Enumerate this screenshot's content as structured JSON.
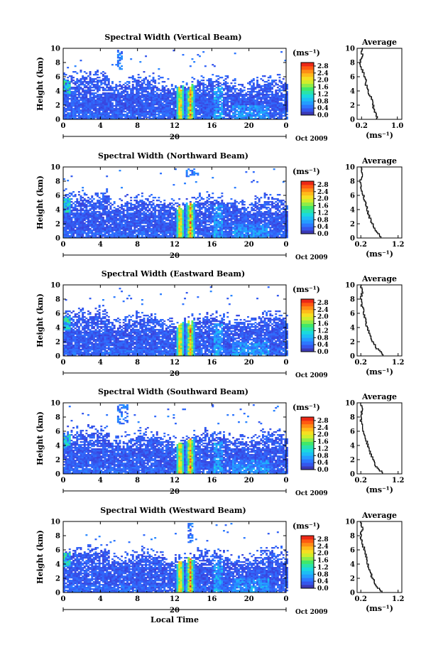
{
  "chart_data": [
    {
      "type": "heatmap",
      "title": "Spectral Width (Vertical Beam)",
      "ylabel": "Height (km)",
      "x_ticks": [
        "0",
        "4",
        "8",
        "12",
        "16",
        "20",
        "0"
      ],
      "y_ticks": [
        "0",
        "2",
        "4",
        "6",
        "8",
        "10"
      ],
      "xlim": [
        0,
        24
      ],
      "ylim": [
        0,
        10
      ],
      "day_label": "20",
      "date_label": "Oct 2009",
      "colorbar": {
        "unit": "(ms⁻¹)",
        "ticks": [
          "0.0",
          "0.4",
          "0.8",
          "1.2",
          "1.6",
          "2.0",
          "2.4",
          "2.8"
        ],
        "range": [
          0,
          3.0
        ]
      },
      "average": {
        "title": "Average",
        "xlabel": "(ms⁻¹)",
        "x_ticks": [
          "0.2",
          "1.0"
        ],
        "xlim": [
          0.1,
          1.1
        ],
        "profile": [
          [
            0.55,
            0
          ],
          [
            0.5,
            1
          ],
          [
            0.45,
            2
          ],
          [
            0.4,
            3
          ],
          [
            0.33,
            4
          ],
          [
            0.3,
            5
          ],
          [
            0.26,
            6
          ],
          [
            0.2,
            7
          ],
          [
            0.17,
            8
          ],
          [
            0.22,
            9
          ],
          [
            0.19,
            10
          ]
        ]
      }
    },
    {
      "type": "heatmap",
      "title": "Spectral Width (Northward Beam)",
      "ylabel": "Height (km)",
      "x_ticks": [
        "0",
        "4",
        "8",
        "12",
        "16",
        "20",
        "0"
      ],
      "y_ticks": [
        "0",
        "2",
        "4",
        "6",
        "8",
        "10"
      ],
      "xlim": [
        0,
        24
      ],
      "ylim": [
        0,
        10
      ],
      "day_label": "20",
      "date_label": "Oct 2009",
      "colorbar": {
        "unit": "(ms⁻¹)",
        "ticks": [
          "0.0",
          "0.4",
          "0.8",
          "1.2",
          "1.6",
          "2.0",
          "2.4",
          "2.8"
        ],
        "range": [
          0,
          3.0
        ]
      },
      "average": {
        "title": "Average",
        "xlabel": "(ms⁻¹)",
        "x_ticks": [
          "0.2",
          "1.2"
        ],
        "xlim": [
          0.1,
          1.3
        ],
        "profile": [
          [
            0.75,
            0
          ],
          [
            0.6,
            1
          ],
          [
            0.5,
            2
          ],
          [
            0.42,
            3
          ],
          [
            0.37,
            4
          ],
          [
            0.32,
            5
          ],
          [
            0.26,
            6
          ],
          [
            0.21,
            7
          ],
          [
            0.2,
            8
          ],
          [
            0.24,
            9
          ],
          [
            0.19,
            10
          ]
        ]
      }
    },
    {
      "type": "heatmap",
      "title": "Spectral Width (Eastward Beam)",
      "ylabel": "Height (km)",
      "x_ticks": [
        "0",
        "4",
        "8",
        "12",
        "16",
        "20",
        "0"
      ],
      "y_ticks": [
        "0",
        "2",
        "4",
        "6",
        "8",
        "10"
      ],
      "xlim": [
        0,
        24
      ],
      "ylim": [
        0,
        10
      ],
      "day_label": "20",
      "date_label": "Oct 2009",
      "colorbar": {
        "unit": "(ms⁻¹)",
        "ticks": [
          "0.0",
          "0.4",
          "0.8",
          "1.2",
          "1.6",
          "2.0",
          "2.4",
          "2.8"
        ],
        "range": [
          0,
          3.0
        ]
      },
      "average": {
        "title": "Average",
        "xlabel": "(ms⁻¹)",
        "x_ticks": [
          "0.2",
          "1.2"
        ],
        "xlim": [
          0.1,
          1.3
        ],
        "profile": [
          [
            0.8,
            0
          ],
          [
            0.62,
            1
          ],
          [
            0.5,
            2
          ],
          [
            0.43,
            3
          ],
          [
            0.37,
            4
          ],
          [
            0.32,
            5
          ],
          [
            0.28,
            6
          ],
          [
            0.23,
            7
          ],
          [
            0.2,
            8
          ],
          [
            0.25,
            9
          ],
          [
            0.19,
            10
          ]
        ]
      }
    },
    {
      "type": "heatmap",
      "title": "Spectral Width (Southward Beam)",
      "ylabel": "Height (km)",
      "x_ticks": [
        "0",
        "4",
        "8",
        "12",
        "16",
        "20",
        "0"
      ],
      "y_ticks": [
        "0",
        "2",
        "4",
        "6",
        "8",
        "10"
      ],
      "xlim": [
        0,
        24
      ],
      "ylim": [
        0,
        10
      ],
      "day_label": "20",
      "date_label": "Oct 2009",
      "colorbar": {
        "unit": "(ms⁻¹)",
        "ticks": [
          "0.0",
          "0.4",
          "0.8",
          "1.2",
          "1.6",
          "2.0",
          "2.4",
          "2.8"
        ],
        "range": [
          0,
          3.0
        ]
      },
      "average": {
        "title": "Average",
        "xlabel": "(ms⁻¹)",
        "x_ticks": [
          "0.2",
          "1.2"
        ],
        "xlim": [
          0.1,
          1.3
        ],
        "profile": [
          [
            0.78,
            0
          ],
          [
            0.6,
            1
          ],
          [
            0.52,
            2
          ],
          [
            0.45,
            3
          ],
          [
            0.38,
            4
          ],
          [
            0.33,
            5
          ],
          [
            0.27,
            6
          ],
          [
            0.21,
            7
          ],
          [
            0.2,
            8
          ],
          [
            0.23,
            9
          ],
          [
            0.19,
            10
          ]
        ]
      }
    },
    {
      "type": "heatmap",
      "title": "Spectral Width (Westward Beam)",
      "ylabel": "Height (km)",
      "x_ticks": [
        "0",
        "4",
        "8",
        "12",
        "16",
        "20",
        "0"
      ],
      "y_ticks": [
        "0",
        "2",
        "4",
        "6",
        "8",
        "10"
      ],
      "xlim": [
        0,
        24
      ],
      "ylim": [
        0,
        10
      ],
      "day_label": "20",
      "date_label": "Oct 2009",
      "xlabel": "Local Time",
      "colorbar": {
        "unit": "(ms⁻¹)",
        "ticks": [
          "0.0",
          "0.4",
          "0.8",
          "1.2",
          "1.6",
          "2.0",
          "2.4",
          "2.8"
        ],
        "range": [
          0,
          3.0
        ]
      },
      "average": {
        "title": "Average",
        "xlabel": "(ms⁻¹)",
        "x_ticks": [
          "0.2",
          "1.2"
        ],
        "xlim": [
          0.1,
          1.3
        ],
        "profile": [
          [
            0.76,
            0
          ],
          [
            0.6,
            1
          ],
          [
            0.5,
            2
          ],
          [
            0.44,
            3
          ],
          [
            0.38,
            4
          ],
          [
            0.33,
            5
          ],
          [
            0.3,
            6
          ],
          [
            0.22,
            7
          ],
          [
            0.2,
            8
          ],
          [
            0.25,
            9
          ],
          [
            0.19,
            10
          ]
        ]
      }
    }
  ]
}
